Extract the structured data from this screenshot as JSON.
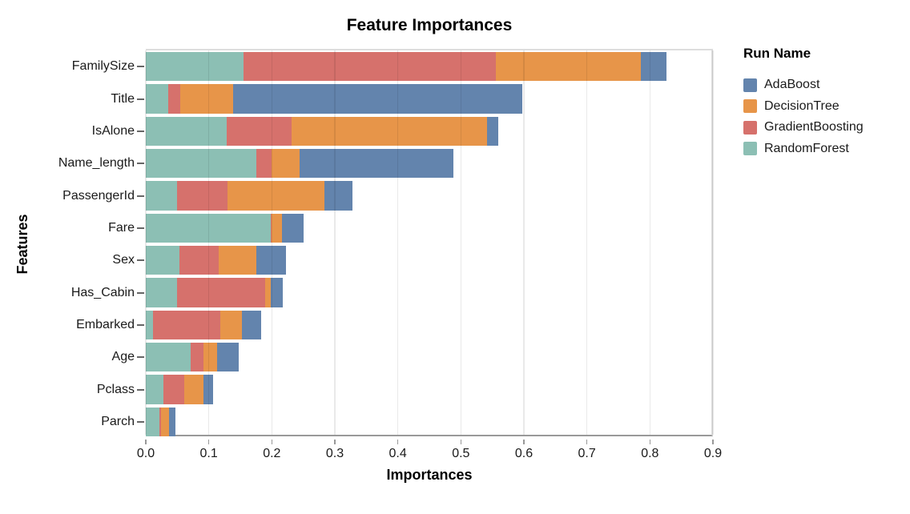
{
  "chart_data": {
    "type": "bar",
    "stacked": true,
    "orientation": "horizontal",
    "title": "Feature Importances",
    "xlabel": "Importances",
    "ylabel": "Features",
    "xlim": [
      0,
      0.9
    ],
    "grid": true,
    "x_ticks": [
      "0.0",
      "0.1",
      "0.2",
      "0.3",
      "0.4",
      "0.5",
      "0.6",
      "0.7",
      "0.8",
      "0.9"
    ],
    "categories": [
      "FamilySize",
      "Title",
      "IsAlone",
      "Name_length",
      "PassengerId",
      "Fare",
      "Sex",
      "Has_Cabin",
      "Embarked",
      "Age",
      "Pclass",
      "Parch"
    ],
    "legend": {
      "title": "Run Name",
      "position": "right",
      "entries": [
        "AdaBoost",
        "DecisionTree",
        "GradientBoosting",
        "RandomForest"
      ]
    },
    "stack_order": [
      "RandomForest",
      "GradientBoosting",
      "DecisionTree",
      "AdaBoost"
    ],
    "series": [
      {
        "name": "AdaBoost",
        "color": "#6384ad",
        "values": [
          0.041,
          0.458,
          0.018,
          0.244,
          0.044,
          0.034,
          0.048,
          0.019,
          0.031,
          0.035,
          0.016,
          0.01
        ]
      },
      {
        "name": "DecisionTree",
        "color": "#e79549",
        "values": [
          0.23,
          0.084,
          0.31,
          0.044,
          0.154,
          0.016,
          0.059,
          0.009,
          0.034,
          0.022,
          0.03,
          0.013
        ]
      },
      {
        "name": "GradientBoosting",
        "color": "#d6716c",
        "values": [
          0.4,
          0.019,
          0.102,
          0.024,
          0.081,
          0.002,
          0.063,
          0.14,
          0.107,
          0.02,
          0.033,
          0.003
        ]
      },
      {
        "name": "RandomForest",
        "color": "#8cbfb4",
        "values": [
          0.155,
          0.036,
          0.129,
          0.176,
          0.049,
          0.198,
          0.053,
          0.049,
          0.011,
          0.071,
          0.028,
          0.021
        ]
      }
    ]
  }
}
